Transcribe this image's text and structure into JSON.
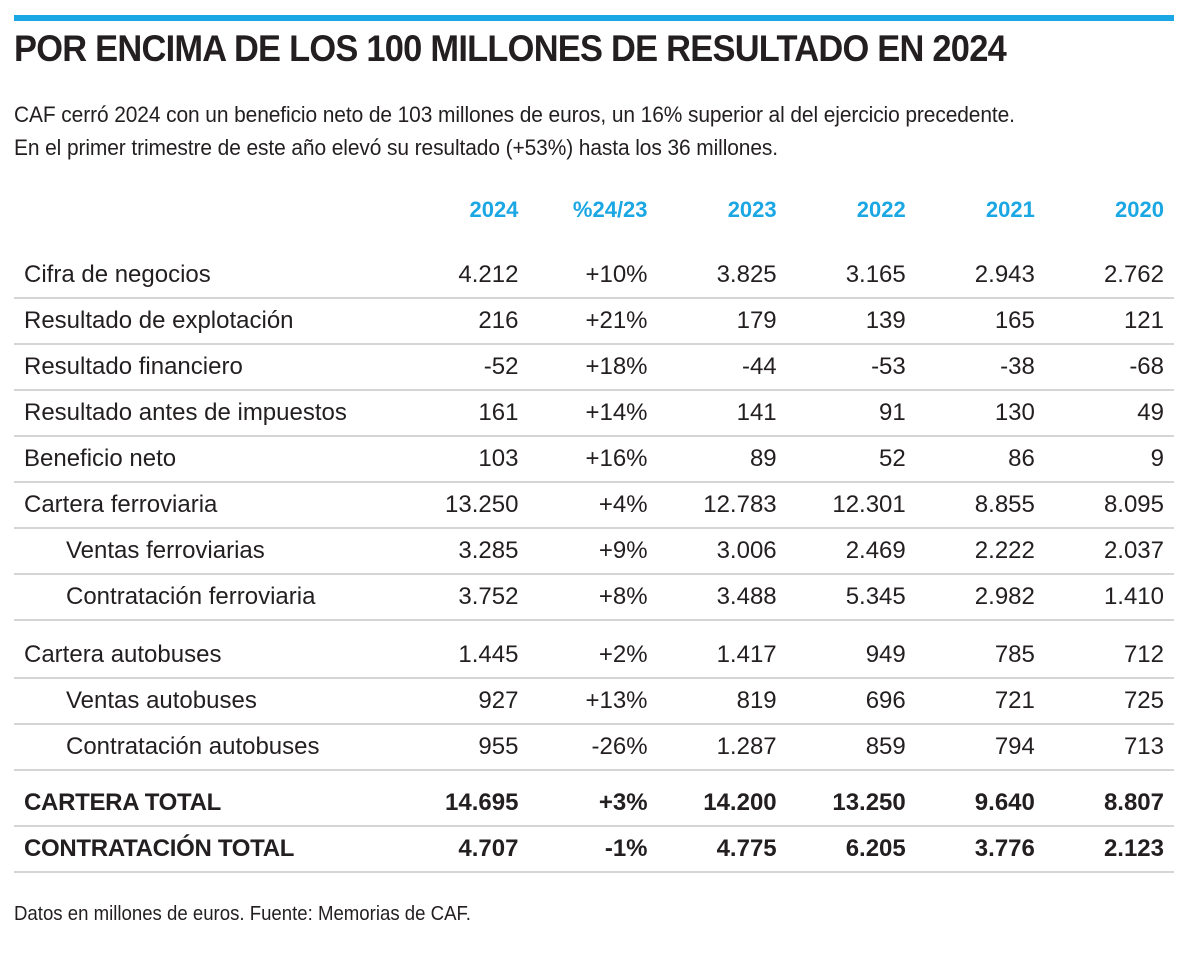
{
  "accent_color": "#1aa7e3",
  "title": "POR ENCIMA DE LOS 100 MILLONES DE RESULTADO EN 2024",
  "subtitle": {
    "line1": "CAF cerró 2024 con un beneficio neto de 103 millones de euros, un 16% superior al del ejercicio precedente.",
    "line2": "En el primer trimestre de este año elevó su resultado (+53%) hasta los 36 millones."
  },
  "table": {
    "headers": [
      "2024",
      "%24/23",
      "2023",
      "2022",
      "2021",
      "2020"
    ],
    "rows": [
      {
        "label": "Cifra de negocios",
        "values": [
          "4.212",
          "+10%",
          "3.825",
          "3.165",
          "2.943",
          "2.762"
        ]
      },
      {
        "label": "Resultado de explotación",
        "values": [
          "216",
          "+21%",
          "179",
          "139",
          "165",
          "121"
        ]
      },
      {
        "label": "Resultado financiero",
        "values": [
          "-52",
          "+18%",
          "-44",
          "-53",
          "-38",
          "-68"
        ]
      },
      {
        "label": "Resultado antes de impuestos",
        "values": [
          "161",
          "+14%",
          "141",
          "91",
          "130",
          "49"
        ]
      },
      {
        "label": "Beneficio neto",
        "values": [
          "103",
          "+16%",
          "89",
          "52",
          "86",
          "9"
        ]
      },
      {
        "label": "Cartera ferroviaria",
        "values": [
          "13.250",
          "+4%",
          "12.783",
          "12.301",
          "8.855",
          "8.095"
        ]
      },
      {
        "label": "Ventas ferroviarias",
        "values": [
          "3.285",
          "+9%",
          "3.006",
          "2.469",
          "2.222",
          "2.037"
        ]
      },
      {
        "label": "Contratación ferroviaria",
        "values": [
          "3.752",
          "+8%",
          "3.488",
          "5.345",
          "2.982",
          "1.410"
        ]
      },
      {
        "label": "Cartera autobuses",
        "values": [
          "1.445",
          "+2%",
          "1.417",
          "949",
          "785",
          "712"
        ]
      },
      {
        "label": "Ventas autobuses",
        "values": [
          "927",
          "+13%",
          "819",
          "696",
          "721",
          "725"
        ]
      },
      {
        "label": "Contratación autobuses",
        "values": [
          "955",
          "-26%",
          "1.287",
          "859",
          "794",
          "713"
        ]
      }
    ],
    "totals": [
      {
        "label": "CARTERA TOTAL",
        "values": [
          "14.695",
          "+3%",
          "14.200",
          "13.250",
          "9.640",
          "8.807"
        ]
      },
      {
        "label": "CONTRATACIÓN TOTAL",
        "values": [
          "4.707",
          "-1%",
          "4.775",
          "6.205",
          "3.776",
          "2.123"
        ]
      }
    ]
  },
  "footer": "Datos en millones de euros. Fuente: Memorias de CAF."
}
